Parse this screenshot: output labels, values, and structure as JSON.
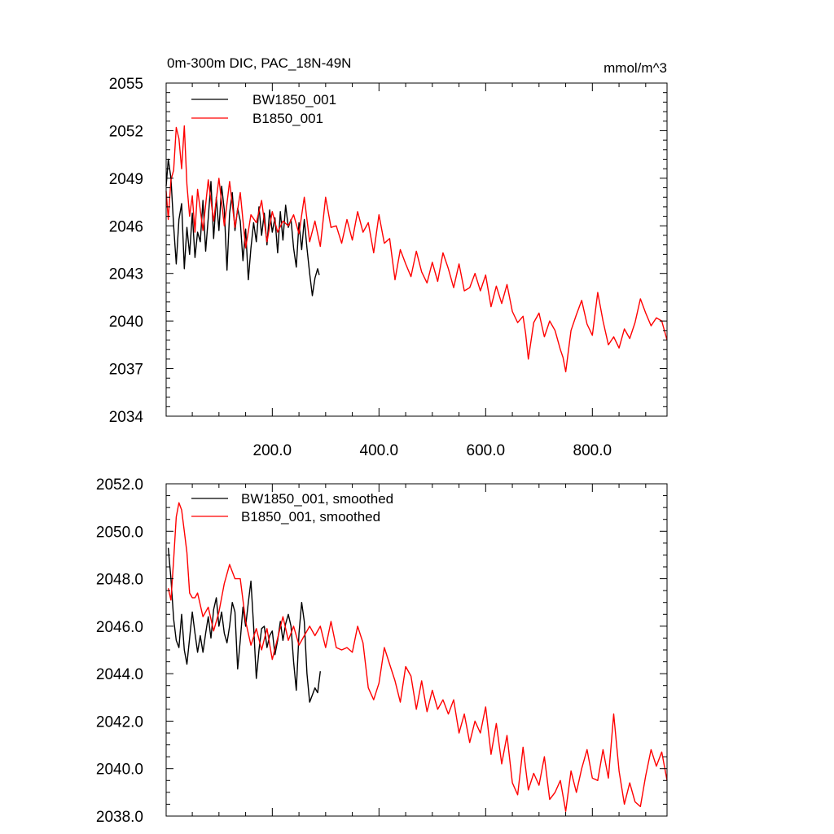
{
  "chart_data": [
    {
      "type": "line",
      "title_left": "0m-300m DIC, PAC_18N-49N",
      "title_right": "mmol/m^3",
      "xlim": [
        1,
        940
      ],
      "ylim": [
        2034,
        2055
      ],
      "yticks": [
        2034,
        2037,
        2040,
        2043,
        2046,
        2049,
        2052,
        2055
      ],
      "ytick_labels": [
        "2034",
        "2037",
        "2040",
        "2043",
        "2046",
        "2049",
        "2052",
        "2055"
      ],
      "xticks": [
        200,
        400,
        600,
        800
      ],
      "xtick_labels": [
        "200.0",
        "400.0",
        "600.0",
        "800.0"
      ],
      "legend_position": "top-left",
      "series": [
        {
          "name": "BW1850_001",
          "color": "#000000",
          "x": [
            1,
            5,
            10,
            15,
            20,
            25,
            30,
            35,
            40,
            45,
            50,
            55,
            60,
            65,
            70,
            75,
            80,
            85,
            90,
            95,
            100,
            105,
            110,
            115,
            120,
            125,
            130,
            135,
            140,
            145,
            150,
            155,
            160,
            165,
            170,
            175,
            180,
            185,
            190,
            195,
            200,
            205,
            210,
            215,
            220,
            225,
            230,
            235,
            240,
            245,
            250,
            255,
            260,
            265,
            270,
            275,
            280,
            285,
            288
          ],
          "y": [
            2048.5,
            2050.2,
            2049.0,
            2046.0,
            2043.6,
            2046.4,
            2047.4,
            2043.3,
            2045.9,
            2044.2,
            2046.8,
            2044.0,
            2045.6,
            2045.0,
            2047.6,
            2044.4,
            2046.5,
            2048.8,
            2045.2,
            2047.8,
            2045.7,
            2048.5,
            2047.0,
            2043.2,
            2046.8,
            2048.1,
            2045.7,
            2047.1,
            2046.3,
            2043.8,
            2045.8,
            2042.6,
            2044.6,
            2046.2,
            2045.0,
            2047.2,
            2045.4,
            2046.8,
            2044.8,
            2047.0,
            2045.6,
            2046.5,
            2044.3,
            2046.9,
            2045.1,
            2047.3,
            2045.9,
            2046.4,
            2044.6,
            2043.4,
            2046.2,
            2044.5,
            2046.4,
            2044.6,
            2043.0,
            2041.6,
            2042.7,
            2043.3,
            2042.9
          ]
        },
        {
          "name": "B1850_001",
          "color": "#ff0000",
          "x": [
            1,
            5,
            10,
            15,
            20,
            25,
            30,
            35,
            40,
            45,
            50,
            55,
            60,
            70,
            80,
            90,
            100,
            110,
            120,
            130,
            140,
            150,
            160,
            170,
            180,
            190,
            200,
            210,
            220,
            230,
            240,
            250,
            260,
            270,
            280,
            290,
            300,
            310,
            320,
            330,
            340,
            350,
            360,
            370,
            380,
            390,
            400,
            410,
            420,
            430,
            440,
            450,
            460,
            470,
            480,
            490,
            500,
            510,
            520,
            530,
            540,
            550,
            560,
            570,
            580,
            590,
            600,
            610,
            620,
            630,
            640,
            650,
            660,
            670,
            675,
            680,
            690,
            700,
            710,
            720,
            730,
            740,
            745,
            750,
            760,
            770,
            780,
            790,
            800,
            810,
            820,
            830,
            840,
            850,
            860,
            870,
            880,
            890,
            900,
            910,
            920,
            930,
            940
          ],
          "y": [
            2048.2,
            2046.4,
            2048.9,
            2049.5,
            2052.2,
            2051.5,
            2049.6,
            2052.3,
            2048.6,
            2046.6,
            2047.9,
            2045.6,
            2048.3,
            2045.7,
            2048.9,
            2046.3,
            2049.0,
            2046.0,
            2048.8,
            2045.9,
            2048.1,
            2044.6,
            2046.7,
            2046.2,
            2047.6,
            2045.0,
            2046.9,
            2045.6,
            2046.3,
            2046.0,
            2046.7,
            2045.5,
            2047.8,
            2045.0,
            2046.3,
            2044.7,
            2047.8,
            2045.9,
            2046.0,
            2044.9,
            2046.4,
            2045.1,
            2046.9,
            2045.6,
            2046.2,
            2044.3,
            2046.7,
            2044.9,
            2045.2,
            2042.6,
            2044.5,
            2043.6,
            2042.8,
            2044.4,
            2043.1,
            2042.4,
            2043.7,
            2042.5,
            2044.3,
            2043.3,
            2042.1,
            2043.6,
            2041.9,
            2042.1,
            2043.0,
            2041.9,
            2042.9,
            2040.9,
            2042.2,
            2041.1,
            2042.3,
            2040.6,
            2039.9,
            2040.3,
            2039.2,
            2037.6,
            2039.9,
            2040.5,
            2039.0,
            2040.0,
            2039.4,
            2038.2,
            2037.7,
            2036.8,
            2039.4,
            2040.4,
            2041.3,
            2039.8,
            2039.1,
            2041.8,
            2040.0,
            2038.5,
            2039.0,
            2038.3,
            2039.5,
            2038.9,
            2039.9,
            2041.4,
            2040.5,
            2039.7,
            2040.2,
            2040.0,
            2038.8
          ]
        }
      ]
    },
    {
      "type": "line",
      "xlim": [
        1,
        940
      ],
      "ylim": [
        2038,
        2052
      ],
      "yticks": [
        2038,
        2040,
        2042,
        2044,
        2046,
        2048,
        2050,
        2052
      ],
      "ytick_labels": [
        "2038.0",
        "2040.0",
        "2042.0",
        "2044.0",
        "2046.0",
        "2048.0",
        "2050.0",
        "2052.0"
      ],
      "legend_position": "top-left",
      "series": [
        {
          "name": "BW1850_001, smoothed",
          "color": "#000000",
          "x": [
            5,
            10,
            15,
            20,
            25,
            30,
            35,
            40,
            45,
            50,
            55,
            60,
            65,
            70,
            75,
            80,
            85,
            90,
            95,
            100,
            105,
            110,
            115,
            120,
            125,
            130,
            135,
            140,
            145,
            150,
            155,
            160,
            165,
            170,
            175,
            180,
            185,
            190,
            195,
            200,
            205,
            210,
            215,
            220,
            225,
            230,
            235,
            240,
            245,
            250,
            255,
            260,
            265,
            270,
            275,
            280,
            285,
            290
          ],
          "y": [
            2049.3,
            2048.0,
            2046.3,
            2045.4,
            2045.1,
            2046.5,
            2045.0,
            2044.4,
            2045.5,
            2046.6,
            2045.7,
            2044.9,
            2045.6,
            2044.9,
            2045.7,
            2046.4,
            2045.5,
            2046.7,
            2047.2,
            2046.0,
            2046.6,
            2045.7,
            2045.3,
            2046.0,
            2047.0,
            2046.6,
            2044.2,
            2045.4,
            2046.8,
            2046.0,
            2047.0,
            2047.9,
            2046.0,
            2043.8,
            2045.0,
            2045.9,
            2046.0,
            2045.1,
            2045.6,
            2045.8,
            2044.8,
            2045.4,
            2046.2,
            2045.4,
            2046.1,
            2046.5,
            2046.0,
            2044.5,
            2043.3,
            2045.7,
            2047.0,
            2046.2,
            2044.0,
            2042.8,
            2043.1,
            2043.4,
            2043.2,
            2044.1
          ]
        },
        {
          "name": "B1850_001, smoothed",
          "color": "#ff0000",
          "x": [
            5,
            10,
            15,
            20,
            25,
            30,
            35,
            40,
            45,
            50,
            55,
            60,
            70,
            80,
            90,
            100,
            110,
            120,
            130,
            140,
            150,
            160,
            170,
            180,
            190,
            200,
            210,
            220,
            230,
            240,
            250,
            260,
            270,
            280,
            290,
            300,
            310,
            320,
            330,
            340,
            350,
            360,
            370,
            380,
            390,
            400,
            410,
            420,
            430,
            440,
            450,
            460,
            470,
            480,
            490,
            500,
            510,
            520,
            530,
            540,
            550,
            560,
            570,
            580,
            590,
            600,
            610,
            620,
            630,
            640,
            650,
            660,
            670,
            680,
            690,
            700,
            710,
            720,
            730,
            740,
            750,
            760,
            770,
            780,
            790,
            800,
            810,
            820,
            830,
            840,
            850,
            860,
            870,
            880,
            890,
            900,
            910,
            920,
            930,
            940
          ],
          "y": [
            2047.6,
            2047.1,
            2048.8,
            2050.6,
            2051.2,
            2050.9,
            2050.0,
            2049.1,
            2047.4,
            2047.2,
            2047.2,
            2047.4,
            2046.4,
            2046.8,
            2045.8,
            2046.6,
            2047.8,
            2048.6,
            2048.0,
            2048.0,
            2046.2,
            2045.2,
            2045.9,
            2045.0,
            2045.9,
            2044.6,
            2045.5,
            2046.4,
            2045.4,
            2046.0,
            2045.2,
            2045.6,
            2046.0,
            2045.6,
            2046.0,
            2045.1,
            2046.2,
            2045.1,
            2045.0,
            2045.1,
            2044.9,
            2046.0,
            2045.3,
            2043.4,
            2042.9,
            2043.6,
            2045.1,
            2044.4,
            2043.7,
            2042.8,
            2044.3,
            2043.9,
            2042.5,
            2043.7,
            2042.4,
            2043.3,
            2042.5,
            2042.9,
            2042.3,
            2042.9,
            2041.5,
            2042.3,
            2041.1,
            2042.0,
            2041.5,
            2042.6,
            2040.6,
            2041.9,
            2040.2,
            2041.4,
            2039.4,
            2038.9,
            2040.9,
            2039.1,
            2039.8,
            2039.3,
            2040.5,
            2038.7,
            2039.0,
            2039.5,
            2038.2,
            2039.9,
            2039.0,
            2040.0,
            2040.8,
            2039.6,
            2039.5,
            2040.8,
            2039.6,
            2042.3,
            2039.9,
            2038.5,
            2039.4,
            2038.6,
            2038.4,
            2039.7,
            2040.8,
            2040.1,
            2040.7,
            2039.5
          ]
        }
      ]
    }
  ]
}
